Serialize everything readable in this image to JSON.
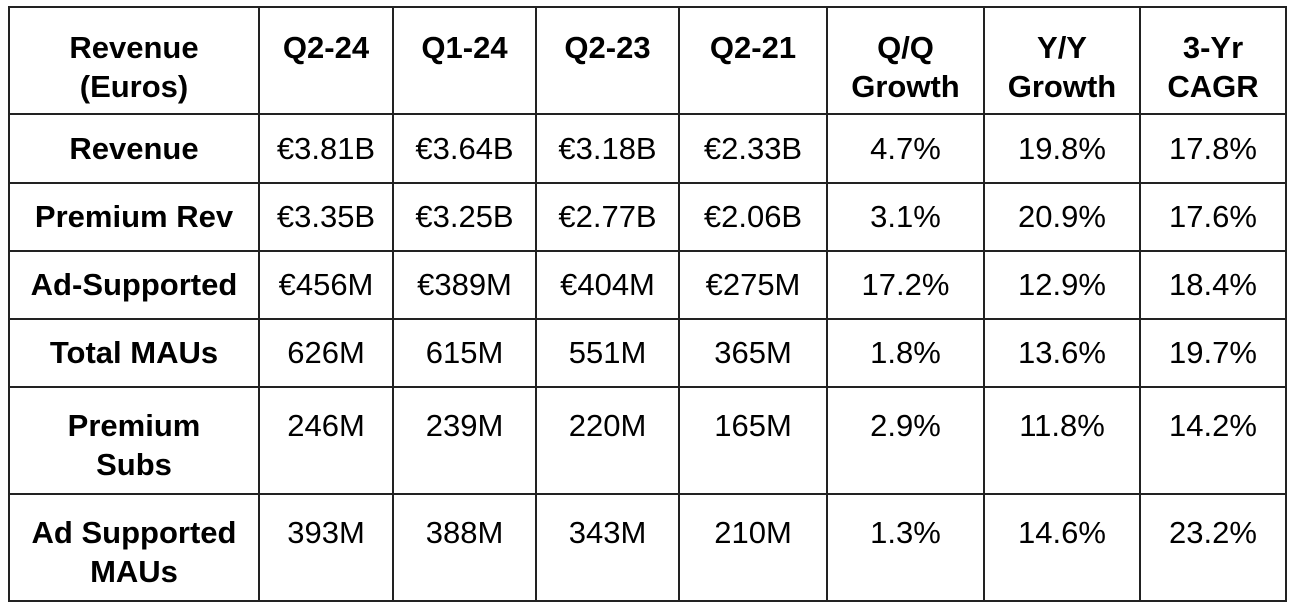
{
  "table": {
    "headers": [
      "Revenue\n(Euros)",
      "Q2-24",
      "Q1-24",
      "Q2-23",
      "Q2-21",
      "Q/Q\nGrowth",
      "Y/Y\nGrowth",
      "3-Yr\nCAGR"
    ],
    "rows": [
      [
        "Revenue",
        "€3.81B",
        "€3.64B",
        "€3.18B",
        "€2.33B",
        "4.7%",
        "19.8%",
        "17.8%"
      ],
      [
        "Premium Rev",
        "€3.35B",
        "€3.25B",
        "€2.77B",
        "€2.06B",
        "3.1%",
        "20.9%",
        "17.6%"
      ],
      [
        "Ad-Supported",
        "€456M",
        "€389M",
        "€404M",
        "€275M",
        "17.2%",
        "12.9%",
        "18.4%"
      ],
      [
        "Total MAUs",
        "626M",
        "615M",
        "551M",
        "365M",
        "1.8%",
        "13.6%",
        "19.7%"
      ],
      [
        "Premium\nSubs",
        "246M",
        "239M",
        "220M",
        "165M",
        "2.9%",
        "11.8%",
        "14.2%"
      ],
      [
        "Ad Supported\nMAUs",
        "393M",
        "388M",
        "343M",
        "210M",
        "1.3%",
        "14.6%",
        "23.2%"
      ]
    ]
  }
}
